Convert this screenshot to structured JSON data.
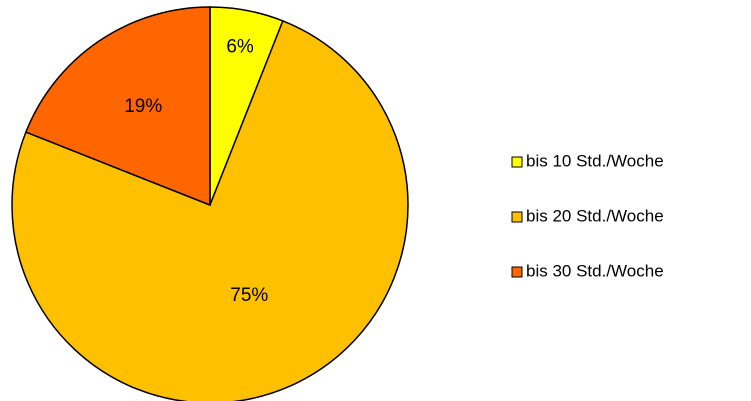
{
  "chart_data": {
    "type": "pie",
    "categories": [
      "bis 10 Std./Woche",
      "bis 20 Std./Woche",
      "bis 30 Std./Woche"
    ],
    "values": [
      6,
      75,
      19
    ],
    "value_labels": [
      "6%",
      "75%",
      "19%"
    ],
    "colors": [
      "#ffff00",
      "#ffc000",
      "#ff6600"
    ],
    "legend": "right"
  }
}
